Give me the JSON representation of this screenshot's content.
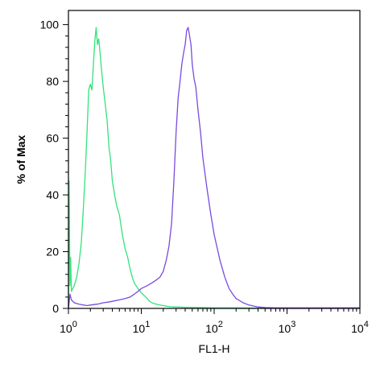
{
  "chart_data": {
    "type": "line",
    "xlabel": "FL1-H",
    "ylabel": "% of Max",
    "xscale": "log",
    "xlim": [
      1,
      10000
    ],
    "ylim": [
      0,
      105
    ],
    "grid": false,
    "x_ticks": [
      {
        "value": 1,
        "base": "10",
        "exp": "0"
      },
      {
        "value": 10,
        "base": "10",
        "exp": "1"
      },
      {
        "value": 100,
        "base": "10",
        "exp": "2"
      },
      {
        "value": 1000,
        "base": "10",
        "exp": "3"
      },
      {
        "value": 10000,
        "base": "10",
        "exp": "4"
      }
    ],
    "y_ticks": [
      0,
      20,
      40,
      60,
      80,
      100
    ],
    "series": [
      {
        "color": "#33e37c",
        "x": [
          1.0,
          1.02,
          1.05,
          1.07,
          1.1,
          1.15,
          1.2,
          1.3,
          1.4,
          1.5,
          1.6,
          1.7,
          1.8,
          1.9,
          2.0,
          2.1,
          2.2,
          2.3,
          2.4,
          2.5,
          2.6,
          2.7,
          2.8,
          2.9,
          3.0,
          3.2,
          3.4,
          3.6,
          3.8,
          4.0,
          4.3,
          4.6,
          5.0,
          5.5,
          6.0,
          6.5,
          7.0,
          7.5,
          8.0,
          9.0,
          10.0,
          11.0,
          12.0,
          13.0,
          14.0,
          16.0,
          18.0,
          20.0,
          22.0,
          25.0,
          30.0,
          40.0,
          60.0,
          100,
          200,
          500,
          1000,
          10000
        ],
        "y": [
          0,
          45,
          8,
          18,
          6,
          7,
          8,
          11,
          16,
          23,
          35,
          48,
          62,
          77,
          79,
          77,
          86,
          94,
          99,
          93,
          95,
          91,
          86,
          82,
          78,
          72,
          66,
          57,
          52,
          45,
          40,
          36,
          33,
          26,
          21,
          18,
          14,
          11,
          9,
          7,
          5.5,
          4.5,
          3.5,
          2.5,
          2,
          1.5,
          1.2,
          1,
          0.8,
          0.6,
          0.5,
          0.4,
          0.3,
          0.2,
          0.2,
          0.1,
          0.1,
          0.1
        ]
      },
      {
        "color": "#7b4ae0",
        "x": [
          1.0,
          1.05,
          1.1,
          1.2,
          1.4,
          1.6,
          1.8,
          2.0,
          2.5,
          3.0,
          3.5,
          4.0,
          5.0,
          6.0,
          7.0,
          8.0,
          9.0,
          10.0,
          12.0,
          14.0,
          16.0,
          18.0,
          20.0,
          22.0,
          24.0,
          26.0,
          28.0,
          30.0,
          32.0,
          34.0,
          36.0,
          38.0,
          40.0,
          42.0,
          44.0,
          46.0,
          48.0,
          50.0,
          53.0,
          56.0,
          60.0,
          65.0,
          70.0,
          80.0,
          90.0,
          100,
          120,
          140,
          160,
          180,
          200,
          250,
          300,
          400,
          500,
          700,
          1000,
          2000,
          5000,
          10000
        ],
        "y": [
          0,
          5,
          3,
          2,
          1.5,
          1.2,
          1,
          1.2,
          1.5,
          2,
          2.2,
          2.5,
          3,
          3.5,
          4,
          5,
          6,
          7,
          8,
          9,
          10,
          11,
          13,
          17,
          22,
          30,
          45,
          62,
          74,
          80,
          86,
          90,
          93,
          98,
          99,
          96,
          93,
          86,
          81,
          78,
          70,
          62,
          53,
          42,
          33,
          26,
          17,
          11,
          7,
          5,
          3.5,
          2,
          1.2,
          0.5,
          0.3,
          0.2,
          0.2,
          0.2,
          0.2,
          0.2
        ]
      }
    ]
  }
}
